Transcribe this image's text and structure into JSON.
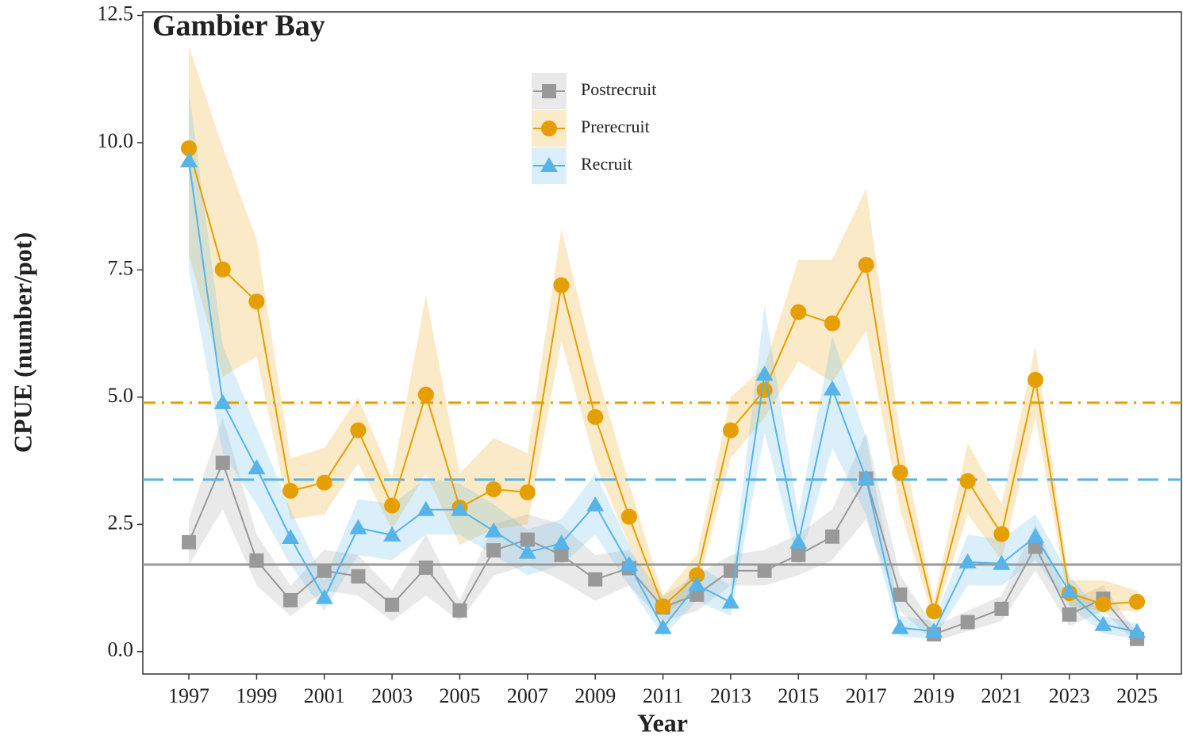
{
  "chart_data": {
    "type": "line",
    "title": "Gambier Bay",
    "x_label": "Year",
    "y_label": "CPUE (number/pot)",
    "x": [
      1997,
      1998,
      1999,
      2000,
      2001,
      2002,
      2003,
      2004,
      2005,
      2006,
      2007,
      2008,
      2009,
      2010,
      2011,
      2012,
      2013,
      2014,
      2015,
      2016,
      2017,
      2018,
      2019,
      2020,
      2021,
      2022,
      2023,
      2024,
      2025
    ],
    "xlim": [
      1995.64,
      2026.31
    ],
    "xticks": [
      1997,
      1999,
      2001,
      2003,
      2005,
      2007,
      2009,
      2011,
      2013,
      2015,
      2017,
      2019,
      2021,
      2023,
      2025
    ],
    "ylim": [
      -0.44,
      12.57
    ],
    "yticks": [
      {
        "value": 0,
        "label": "0.0"
      },
      2.5,
      {
        "value": 5,
        "label": "5.0"
      },
      7.5,
      {
        "value": 10,
        "label": "10.0"
      },
      12.5
    ],
    "legend": "top-center",
    "series": [
      {
        "name": "Postrecruit",
        "color": "#999999",
        "marker": "square",
        "mean": 1.71,
        "mean_style": "solid",
        "values": [
          2.15,
          3.71,
          1.79,
          1.01,
          1.59,
          1.48,
          0.92,
          1.65,
          0.81,
          1.99,
          2.2,
          1.9,
          1.42,
          1.64,
          0.87,
          1.12,
          1.59,
          1.59,
          1.9,
          2.26,
          3.4,
          1.12,
          0.34,
          0.58,
          0.84,
          2.06,
          0.73,
          1.04,
          0.25
        ],
        "lower": [
          1.7,
          2.8,
          1.3,
          0.7,
          1.2,
          1.1,
          0.6,
          1.1,
          0.6,
          1.5,
          1.7,
          1.4,
          1.0,
          1.3,
          0.6,
          0.8,
          1.3,
          1.3,
          1.5,
          1.8,
          2.6,
          0.8,
          0.2,
          0.4,
          0.6,
          1.6,
          0.5,
          0.8,
          0.15
        ],
        "upper": [
          2.6,
          4.6,
          2.3,
          1.3,
          2.0,
          1.9,
          1.2,
          2.3,
          1.0,
          2.5,
          2.7,
          2.5,
          1.9,
          2.0,
          1.1,
          1.5,
          1.9,
          2.0,
          2.3,
          2.8,
          4.3,
          1.5,
          0.5,
          0.8,
          1.1,
          2.5,
          1.0,
          1.3,
          0.35
        ]
      },
      {
        "name": "Prerecruit",
        "color": "#E69F00",
        "marker": "circle",
        "mean": 4.89,
        "mean_style": "dashdot",
        "values": [
          9.89,
          7.51,
          6.88,
          3.16,
          3.32,
          4.35,
          2.87,
          5.05,
          2.83,
          3.19,
          3.13,
          7.2,
          4.61,
          2.65,
          0.89,
          1.5,
          4.35,
          5.14,
          6.67,
          6.45,
          7.6,
          3.52,
          0.79,
          3.35,
          2.31,
          5.34,
          1.15,
          0.93,
          0.98
        ],
        "lower": [
          7.8,
          5.4,
          5.8,
          2.6,
          2.7,
          3.7,
          2.4,
          3.5,
          2.1,
          2.4,
          2.5,
          6.1,
          3.7,
          2.1,
          0.7,
          1.2,
          3.8,
          4.6,
          5.7,
          5.3,
          6.3,
          2.8,
          0.6,
          2.7,
          1.8,
          4.6,
          0.9,
          0.8,
          0.8
        ],
        "upper": [
          11.9,
          9.9,
          8.1,
          3.8,
          4.0,
          5.0,
          3.4,
          7.0,
          3.5,
          4.2,
          3.9,
          8.3,
          5.6,
          3.3,
          1.1,
          1.9,
          5.0,
          5.6,
          7.7,
          7.7,
          9.1,
          4.3,
          1.0,
          4.1,
          2.9,
          6.0,
          1.4,
          1.4,
          1.2
        ]
      },
      {
        "name": "Recruit",
        "color": "#56B4E9",
        "marker": "triangle",
        "mean": 3.38,
        "mean_style": "dashed",
        "values": [
          9.64,
          4.89,
          3.61,
          2.24,
          1.06,
          2.43,
          2.29,
          2.79,
          2.79,
          2.37,
          1.95,
          2.13,
          2.88,
          1.71,
          0.47,
          1.31,
          0.97,
          5.45,
          2.15,
          5.16,
          3.4,
          0.47,
          0.4,
          1.76,
          1.73,
          2.26,
          1.18,
          0.53,
          0.39
        ],
        "lower": [
          7.5,
          3.9,
          2.9,
          1.7,
          0.8,
          1.9,
          1.8,
          2.3,
          2.3,
          1.9,
          1.5,
          1.7,
          2.3,
          1.3,
          0.3,
          1.0,
          0.7,
          4.3,
          1.7,
          4.0,
          2.7,
          0.3,
          0.25,
          1.3,
          1.3,
          1.8,
          0.9,
          0.35,
          0.25
        ],
        "upper": [
          11.0,
          6.0,
          4.4,
          2.8,
          1.4,
          3.0,
          2.9,
          3.4,
          3.3,
          2.9,
          2.4,
          2.6,
          3.5,
          2.1,
          0.7,
          1.7,
          1.3,
          6.8,
          2.7,
          6.2,
          4.2,
          0.7,
          0.6,
          2.3,
          2.2,
          2.7,
          1.5,
          0.7,
          0.55
        ]
      }
    ]
  }
}
